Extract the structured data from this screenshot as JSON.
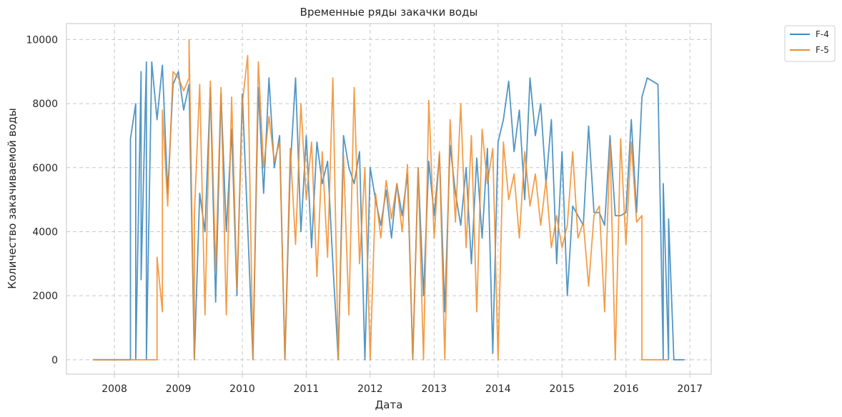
{
  "chart_data": {
    "type": "line",
    "title": "Временные ряды закачки воды",
    "xlabel": "Дата",
    "ylabel": "Количество закачиваемой воды",
    "x_ticks": [
      "2008",
      "2009",
      "2010",
      "2011",
      "2012",
      "2013",
      "2014",
      "2015",
      "2016",
      "2017"
    ],
    "y_ticks": [
      "0",
      "2000",
      "4000",
      "6000",
      "8000",
      "10000"
    ],
    "xlim": [
      "2007-04",
      "2017-05"
    ],
    "ylim": [
      -450,
      10500
    ],
    "grid": true,
    "legend_position": "outside-top-right",
    "series": [
      {
        "name": "F-4",
        "color": "#3f8bc0",
        "points": [
          [
            "2007-09",
            0
          ],
          [
            "2008-04",
            0
          ],
          [
            "2008-04",
            6900
          ],
          [
            "2008-05",
            8000
          ],
          [
            "2008-05",
            0
          ],
          [
            "2008-06",
            9000
          ],
          [
            "2008-06",
            2500
          ],
          [
            "2008-07",
            9300
          ],
          [
            "2008-07",
            0
          ],
          [
            "2008-08",
            9300
          ],
          [
            "2008-09",
            7500
          ],
          [
            "2008-10",
            9200
          ],
          [
            "2008-11",
            5200
          ],
          [
            "2008-12",
            8600
          ],
          [
            "2009-01",
            9000
          ],
          [
            "2009-02",
            7800
          ],
          [
            "2009-03",
            8600
          ],
          [
            "2009-04",
            0
          ],
          [
            "2009-05",
            5200
          ],
          [
            "2009-06",
            4000
          ],
          [
            "2009-07",
            8500
          ],
          [
            "2009-08",
            1800
          ],
          [
            "2009-09",
            8300
          ],
          [
            "2009-10",
            4000
          ],
          [
            "2009-11",
            7200
          ],
          [
            "2009-12",
            2000
          ],
          [
            "2010-01",
            8300
          ],
          [
            "2010-02",
            4200
          ],
          [
            "2010-03",
            0
          ],
          [
            "2010-04",
            8500
          ],
          [
            "2010-05",
            5200
          ],
          [
            "2010-06",
            8800
          ],
          [
            "2010-07",
            6000
          ],
          [
            "2010-08",
            7000
          ],
          [
            "2010-09",
            0
          ],
          [
            "2010-10",
            6000
          ],
          [
            "2010-11",
            8800
          ],
          [
            "2010-12",
            4000
          ],
          [
            "2011-01",
            7000
          ],
          [
            "2011-02",
            3500
          ],
          [
            "2011-03",
            6800
          ],
          [
            "2011-04",
            5500
          ],
          [
            "2011-05",
            6200
          ],
          [
            "2011-06",
            3000
          ],
          [
            "2011-07",
            0
          ],
          [
            "2011-08",
            7000
          ],
          [
            "2011-09",
            6000
          ],
          [
            "2011-10",
            5500
          ],
          [
            "2011-11",
            6500
          ],
          [
            "2011-12",
            0
          ],
          [
            "2012-01",
            6000
          ],
          [
            "2012-02",
            5000
          ],
          [
            "2012-03",
            4200
          ],
          [
            "2012-04",
            5300
          ],
          [
            "2012-05",
            3800
          ],
          [
            "2012-06",
            5500
          ],
          [
            "2012-07",
            4500
          ],
          [
            "2012-08",
            5800
          ],
          [
            "2012-09",
            0
          ],
          [
            "2012-10",
            6000
          ],
          [
            "2012-11",
            2000
          ],
          [
            "2012-12",
            6200
          ],
          [
            "2013-01",
            4500
          ],
          [
            "2013-02",
            6400
          ],
          [
            "2013-03",
            1500
          ],
          [
            "2013-04",
            6700
          ],
          [
            "2013-05",
            5200
          ],
          [
            "2013-06",
            4200
          ],
          [
            "2013-07",
            6000
          ],
          [
            "2013-08",
            3000
          ],
          [
            "2013-09",
            6300
          ],
          [
            "2013-10",
            3800
          ],
          [
            "2013-11",
            6600
          ],
          [
            "2013-12",
            200
          ],
          [
            "2014-01",
            6800
          ],
          [
            "2014-02",
            7500
          ],
          [
            "2014-03",
            8700
          ],
          [
            "2014-04",
            6500
          ],
          [
            "2014-05",
            7800
          ],
          [
            "2014-06",
            5000
          ],
          [
            "2014-07",
            8800
          ],
          [
            "2014-08",
            7000
          ],
          [
            "2014-09",
            8000
          ],
          [
            "2014-10",
            5500
          ],
          [
            "2014-11",
            7500
          ],
          [
            "2014-12",
            3000
          ],
          [
            "2015-01",
            6500
          ],
          [
            "2015-02",
            2000
          ],
          [
            "2015-03",
            4800
          ],
          [
            "2015-04",
            4500
          ],
          [
            "2015-05",
            4200
          ],
          [
            "2015-06",
            7300
          ],
          [
            "2015-07",
            4600
          ],
          [
            "2015-08",
            4600
          ],
          [
            "2015-09",
            4200
          ],
          [
            "2015-10",
            7000
          ],
          [
            "2015-11",
            4500
          ],
          [
            "2015-12",
            4500
          ],
          [
            "2016-01",
            4600
          ],
          [
            "2016-02",
            7500
          ],
          [
            "2016-03",
            4600
          ],
          [
            "2016-04",
            8200
          ],
          [
            "2016-05",
            8800
          ],
          [
            "2016-06",
            8700
          ],
          [
            "2016-07",
            8600
          ],
          [
            "2016-08",
            0
          ],
          [
            "2016-08",
            5500
          ],
          [
            "2016-09",
            0
          ],
          [
            "2016-09",
            4400
          ],
          [
            "2016-10",
            0
          ],
          [
            "2016-12",
            0
          ]
        ]
      },
      {
        "name": "F-5",
        "color": "#f28c28",
        "points": [
          [
            "2007-09",
            0
          ],
          [
            "2008-09",
            0
          ],
          [
            "2008-09",
            3200
          ],
          [
            "2008-10",
            1500
          ],
          [
            "2008-10",
            7800
          ],
          [
            "2008-11",
            4800
          ],
          [
            "2008-12",
            9000
          ],
          [
            "2009-01",
            8800
          ],
          [
            "2009-02",
            8400
          ],
          [
            "2009-03",
            8800
          ],
          [
            "2009-03",
            10000
          ],
          [
            "2009-04",
            0
          ],
          [
            "2009-04",
            4500
          ],
          [
            "2009-05",
            8600
          ],
          [
            "2009-06",
            1400
          ],
          [
            "2009-07",
            8700
          ],
          [
            "2009-08",
            2800
          ],
          [
            "2009-09",
            8500
          ],
          [
            "2009-10",
            1400
          ],
          [
            "2009-11",
            8200
          ],
          [
            "2009-12",
            2200
          ],
          [
            "2010-01",
            8000
          ],
          [
            "2010-02",
            9500
          ],
          [
            "2010-03",
            0
          ],
          [
            "2010-04",
            9300
          ],
          [
            "2010-05",
            6000
          ],
          [
            "2010-06",
            7600
          ],
          [
            "2010-07",
            6200
          ],
          [
            "2010-08",
            6800
          ],
          [
            "2010-09",
            0
          ],
          [
            "2010-10",
            6600
          ],
          [
            "2010-11",
            3600
          ],
          [
            "2010-12",
            8000
          ],
          [
            "2011-01",
            5000
          ],
          [
            "2011-02",
            6800
          ],
          [
            "2011-03",
            2600
          ],
          [
            "2011-04",
            6500
          ],
          [
            "2011-05",
            3200
          ],
          [
            "2011-06",
            8800
          ],
          [
            "2011-07",
            0
          ],
          [
            "2011-08",
            6400
          ],
          [
            "2011-09",
            1400
          ],
          [
            "2011-10",
            8500
          ],
          [
            "2011-11",
            3000
          ],
          [
            "2011-12",
            6000
          ],
          [
            "2012-01",
            0
          ],
          [
            "2012-02",
            5200
          ],
          [
            "2012-03",
            3800
          ],
          [
            "2012-04",
            5600
          ],
          [
            "2012-05",
            4400
          ],
          [
            "2012-06",
            5500
          ],
          [
            "2012-07",
            4000
          ],
          [
            "2012-08",
            6100
          ],
          [
            "2012-09",
            0
          ],
          [
            "2012-10",
            6000
          ],
          [
            "2012-11",
            0
          ],
          [
            "2012-12",
            8100
          ],
          [
            "2013-01",
            3800
          ],
          [
            "2013-02",
            6500
          ],
          [
            "2013-03",
            0
          ],
          [
            "2013-04",
            7500
          ],
          [
            "2013-05",
            4300
          ],
          [
            "2013-06",
            8000
          ],
          [
            "2013-07",
            3500
          ],
          [
            "2013-08",
            7000
          ],
          [
            "2013-09",
            1500
          ],
          [
            "2013-10",
            7200
          ],
          [
            "2013-11",
            5500
          ],
          [
            "2013-12",
            6600
          ],
          [
            "2014-01",
            0
          ],
          [
            "2014-02",
            6800
          ],
          [
            "2014-03",
            5000
          ],
          [
            "2014-04",
            5800
          ],
          [
            "2014-05",
            3800
          ],
          [
            "2014-06",
            6500
          ],
          [
            "2014-07",
            4800
          ],
          [
            "2014-08",
            5800
          ],
          [
            "2014-09",
            4200
          ],
          [
            "2014-10",
            5600
          ],
          [
            "2014-11",
            3500
          ],
          [
            "2014-12",
            4500
          ],
          [
            "2015-01",
            3500
          ],
          [
            "2015-02",
            4200
          ],
          [
            "2015-03",
            6500
          ],
          [
            "2015-04",
            3800
          ],
          [
            "2015-05",
            4300
          ],
          [
            "2015-06",
            2300
          ],
          [
            "2015-07",
            4500
          ],
          [
            "2015-08",
            4800
          ],
          [
            "2015-09",
            1500
          ],
          [
            "2015-10",
            6800
          ],
          [
            "2015-11",
            0
          ],
          [
            "2015-12",
            6900
          ],
          [
            "2016-01",
            3600
          ],
          [
            "2016-02",
            6800
          ],
          [
            "2016-03",
            4300
          ],
          [
            "2016-04",
            4500
          ],
          [
            "2016-04",
            0
          ],
          [
            "2016-09",
            0
          ]
        ]
      }
    ]
  }
}
